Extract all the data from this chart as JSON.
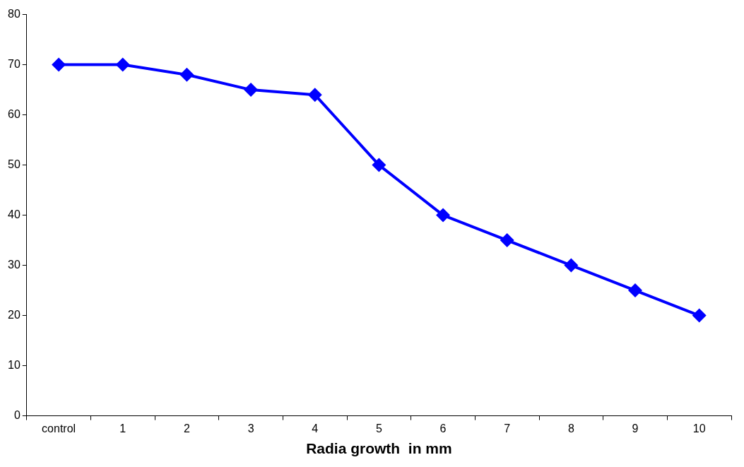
{
  "chart_data": {
    "type": "line",
    "xlabel": "Radia growth  in mm",
    "categories": [
      "control",
      "1",
      "2",
      "3",
      "4",
      "5",
      "6",
      "7",
      "8",
      "9",
      "10"
    ],
    "series": [
      {
        "color": "#0000ff",
        "values": [
          70,
          70,
          68,
          65,
          64,
          50,
          40,
          35,
          30,
          25,
          20
        ]
      }
    ],
    "ylim": [
      0,
      80
    ],
    "yticks": [
      0,
      10,
      20,
      30,
      40,
      50,
      60,
      70,
      80
    ],
    "grid": false,
    "legend": false,
    "marker": "diamond",
    "line_style": "solid"
  }
}
